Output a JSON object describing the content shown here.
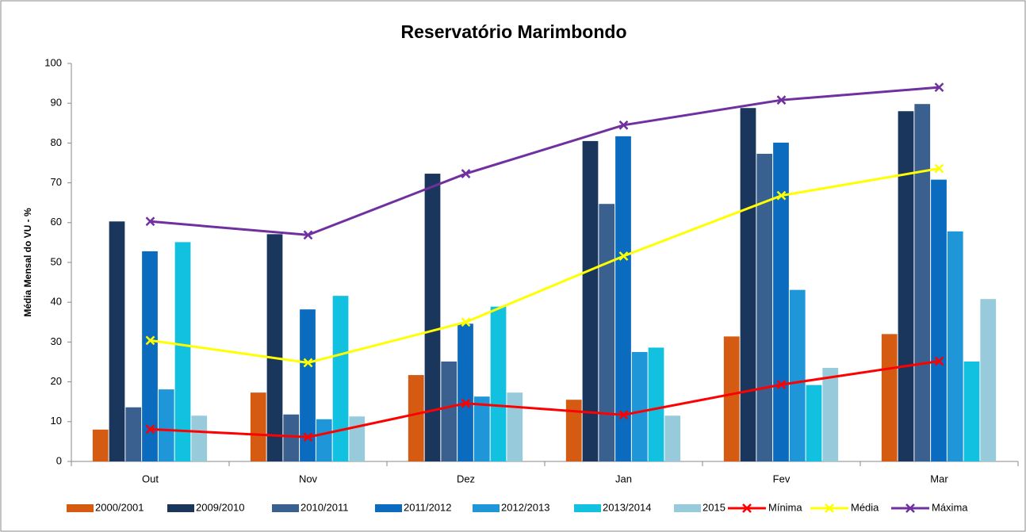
{
  "chart_data": {
    "type": "bar",
    "title": "Reservatório Marimbondo",
    "y_label": "Média Mensal  do VU - %",
    "categories": [
      "Out",
      "Nov",
      "Dez",
      "Jan",
      "Fev",
      "Mar"
    ],
    "ylim": [
      0,
      100
    ],
    "yticks": [
      0,
      10,
      20,
      30,
      40,
      50,
      60,
      70,
      80,
      90,
      100
    ],
    "grid": false,
    "legend": "bottom",
    "series": [
      {
        "name": "2000/2001",
        "type": "bar",
        "color": "#d55a12",
        "values": [
          8,
          17.3,
          21.7,
          15.5,
          31.4,
          32
        ]
      },
      {
        "name": "2009/2010",
        "type": "bar",
        "color": "#1b365d",
        "values": [
          60.3,
          57.1,
          72.3,
          80.5,
          88.8,
          88
        ]
      },
      {
        "name": "2010/2011",
        "type": "bar",
        "color": "#3a6090",
        "values": [
          13.6,
          11.8,
          25.1,
          64.7,
          77.3,
          89.8
        ]
      },
      {
        "name": "2011/2012",
        "type": "bar",
        "color": "#0b6bbf",
        "values": [
          52.8,
          38.2,
          34.6,
          81.7,
          80.1,
          70.8
        ]
      },
      {
        "name": "2012/2013",
        "type": "bar",
        "color": "#1e96d8",
        "values": [
          18.1,
          10.6,
          16.3,
          27.5,
          43.1,
          57.8
        ]
      },
      {
        "name": "2013/2014",
        "type": "bar",
        "color": "#12c0e0",
        "values": [
          55.1,
          41.6,
          38.9,
          28.6,
          19.2,
          25.1
        ]
      },
      {
        "name": "2015",
        "type": "bar",
        "color": "#97cbdc",
        "values": [
          11.5,
          11.3,
          17.3,
          11.5,
          23.5,
          40.8
        ]
      },
      {
        "name": "Mínima",
        "type": "line",
        "color": "#ff0000",
        "values": [
          8.1,
          6.1,
          14.6,
          11.7,
          19.3,
          25.2
        ]
      },
      {
        "name": "Média",
        "type": "line",
        "color": "#ffff00",
        "values": [
          30.4,
          24.8,
          35,
          51.6,
          66.8,
          73.6
        ]
      },
      {
        "name": "Máxima",
        "type": "line",
        "color": "#7030a0",
        "values": [
          60.3,
          56.9,
          72.3,
          84.5,
          90.8,
          94
        ]
      }
    ]
  }
}
